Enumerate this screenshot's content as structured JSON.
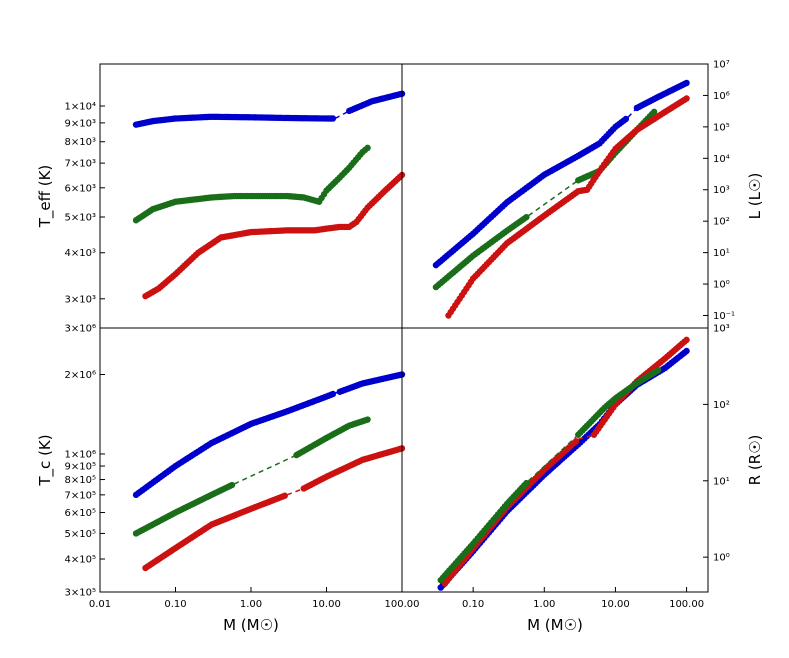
{
  "chart_data": [
    {
      "panel": "top-left",
      "type": "scatter",
      "title": "",
      "xlabel": "",
      "ylabel": "T_eff (K)",
      "xscale": "log",
      "yscale": "log",
      "xlim": [
        0.01,
        100
      ],
      "ylim": [
        2500,
        13000
      ],
      "ytick_labels": [
        "3×10³",
        "4×10³",
        "5×10³",
        "6×10³",
        "7×10³",
        "8×10³",
        "9×10³",
        "1×10⁴"
      ],
      "ytick_values": [
        3000,
        4000,
        5000,
        6000,
        7000,
        8000,
        9000,
        10000
      ],
      "series": [
        {
          "name": "blue",
          "color": "#0000cc",
          "points": [
            [
              0.03,
              8900
            ],
            [
              0.05,
              9100
            ],
            [
              0.1,
              9250
            ],
            [
              0.3,
              9350
            ],
            [
              1,
              9320
            ],
            [
              3,
              9280
            ],
            [
              10,
              9250
            ],
            [
              13,
              9250
            ],
            [
              20,
              9700
            ],
            [
              40,
              10300
            ],
            [
              100,
              10800
            ]
          ],
          "gap": [
            [
              13,
              20
            ]
          ]
        },
        {
          "name": "green",
          "color": "#1a6e1a",
          "points": [
            [
              0.03,
              4900
            ],
            [
              0.05,
              5250
            ],
            [
              0.1,
              5500
            ],
            [
              0.3,
              5650
            ],
            [
              0.6,
              5700
            ],
            [
              3,
              5700
            ],
            [
              5,
              5650
            ],
            [
              8,
              5500
            ],
            [
              10,
              5900
            ],
            [
              15,
              6400
            ],
            [
              20,
              6800
            ],
            [
              30,
              7500
            ],
            [
              35,
              7700
            ]
          ],
          "gap": [
            [
              0.6,
              4
            ]
          ]
        },
        {
          "name": "red",
          "color": "#cc1111",
          "points": [
            [
              0.04,
              3050
            ],
            [
              0.06,
              3200
            ],
            [
              0.1,
              3500
            ],
            [
              0.2,
              4000
            ],
            [
              0.4,
              4400
            ],
            [
              1,
              4550
            ],
            [
              3,
              4600
            ],
            [
              7,
              4600
            ],
            [
              10,
              4650
            ],
            [
              15,
              4700
            ],
            [
              20,
              4700
            ],
            [
              25,
              4850
            ],
            [
              35,
              5300
            ],
            [
              60,
              5900
            ],
            [
              100,
              6500
            ]
          ],
          "gap": []
        }
      ]
    },
    {
      "panel": "top-right",
      "type": "scatter",
      "title": "",
      "xlabel": "",
      "ylabel": "L (L☉)",
      "xscale": "log",
      "yscale": "log",
      "xlim": [
        0.01,
        200
      ],
      "ylim": [
        0.04,
        10000000
      ],
      "ytick_labels": [
        "10⁻¹",
        "10⁰",
        "10¹",
        "10²",
        "10³",
        "10⁴",
        "10⁵",
        "10⁶",
        "10⁷"
      ],
      "ytick_values": [
        0.1,
        1,
        10,
        100,
        1000,
        10000,
        100000,
        1000000,
        10000000
      ],
      "series": [
        {
          "name": "blue",
          "color": "#0000cc",
          "points": [
            [
              0.03,
              4
            ],
            [
              0.1,
              40
            ],
            [
              0.3,
              400
            ],
            [
              1,
              3000
            ],
            [
              3,
              12000
            ],
            [
              6,
              30000
            ],
            [
              10,
              100000
            ],
            [
              15,
              200000
            ],
            [
              20,
              400000
            ],
            [
              40,
              900000
            ],
            [
              100,
              2500000
            ]
          ],
          "gap": [
            [
              15,
              20
            ]
          ]
        },
        {
          "name": "green",
          "color": "#1a6e1a",
          "points": [
            [
              0.03,
              0.8
            ],
            [
              0.1,
              8
            ],
            [
              0.3,
              50
            ],
            [
              0.6,
              150
            ],
            [
              3,
              2000
            ],
            [
              6,
              4000
            ],
            [
              10,
              15000
            ],
            [
              20,
              80000
            ],
            [
              35,
              300000
            ]
          ],
          "gap": [
            [
              0.6,
              3
            ]
          ]
        },
        {
          "name": "red",
          "color": "#cc1111",
          "points": [
            [
              0.045,
              0.1
            ],
            [
              0.1,
              1.5
            ],
            [
              0.3,
              20
            ],
            [
              1,
              150
            ],
            [
              3,
              900
            ],
            [
              4,
              1000
            ],
            [
              6,
              4000
            ],
            [
              10,
              20000
            ],
            [
              20,
              80000
            ],
            [
              50,
              300000
            ],
            [
              100,
              800000
            ]
          ],
          "gap": [
            [
              4,
              5
            ]
          ]
        }
      ]
    },
    {
      "panel": "bottom-left",
      "type": "scatter",
      "title": "",
      "xlabel": "M (M☉)",
      "ylabel": "T_c (K)",
      "xscale": "log",
      "yscale": "log",
      "xlim": [
        0.01,
        100
      ],
      "ylim": [
        300000,
        3000000
      ],
      "xtick_labels": [
        "0.01",
        "0.10",
        "1.00",
        "10.00",
        "100.00"
      ],
      "xtick_values": [
        0.01,
        0.1,
        1,
        10,
        100
      ],
      "ytick_labels": [
        "3×10⁵",
        "4×10⁵",
        "5×10⁵",
        "6×10⁵",
        "7×10⁵",
        "8×10⁵",
        "9×10⁵",
        "1×10⁶",
        "2×10⁶",
        "3×10⁶"
      ],
      "ytick_values": [
        300000,
        400000,
        500000,
        600000,
        700000,
        800000,
        900000,
        1000000,
        2000000,
        3000000
      ],
      "series": [
        {
          "name": "blue",
          "color": "#0000cc",
          "points": [
            [
              0.03,
              700000
            ],
            [
              0.1,
              900000
            ],
            [
              0.3,
              1100000
            ],
            [
              1,
              1300000
            ],
            [
              3,
              1450000
            ],
            [
              10,
              1650000
            ],
            [
              13,
              1700000
            ],
            [
              15,
              1720000
            ],
            [
              30,
              1850000
            ],
            [
              100,
              2000000
            ]
          ],
          "gap": [
            [
              13,
              15
            ]
          ]
        },
        {
          "name": "green",
          "color": "#1a6e1a",
          "points": [
            [
              0.03,
              500000
            ],
            [
              0.1,
              600000
            ],
            [
              0.3,
              700000
            ],
            [
              0.6,
              770000
            ],
            [
              4,
              990000
            ],
            [
              10,
              1150000
            ],
            [
              20,
              1280000
            ],
            [
              35,
              1350000
            ]
          ],
          "gap": [
            [
              0.6,
              4
            ]
          ]
        },
        {
          "name": "red",
          "color": "#cc1111",
          "points": [
            [
              0.04,
              370000
            ],
            [
              0.1,
              440000
            ],
            [
              0.3,
              540000
            ],
            [
              1,
              620000
            ],
            [
              3,
              700000
            ],
            [
              5,
              740000
            ],
            [
              10,
              820000
            ],
            [
              30,
              950000
            ],
            [
              100,
              1050000
            ]
          ],
          "gap": [
            [
              3,
              5
            ]
          ]
        }
      ]
    },
    {
      "panel": "bottom-right",
      "type": "scatter",
      "title": "",
      "xlabel": "M (M☉)",
      "ylabel": "R (R☉)",
      "xscale": "log",
      "yscale": "log",
      "xlim": [
        0.01,
        200
      ],
      "ylim": [
        0.35,
        1000
      ],
      "xtick_labels": [
        "0.10",
        "1.00",
        "10.00",
        "100.00"
      ],
      "xtick_values": [
        0.1,
        1,
        10,
        100
      ],
      "ytick_labels": [
        "10⁰",
        "10¹",
        "10²",
        "10³"
      ],
      "ytick_values": [
        1,
        10,
        100,
        1000
      ],
      "series": [
        {
          "name": "blue",
          "color": "#0000cc",
          "points": [
            [
              0.035,
              0.4
            ],
            [
              0.1,
              1.2
            ],
            [
              0.3,
              4
            ],
            [
              1,
              12
            ],
            [
              3,
              30
            ],
            [
              6,
              55
            ],
            [
              10,
              100
            ],
            [
              20,
              180
            ],
            [
              50,
              300
            ],
            [
              100,
              500
            ]
          ],
          "gap": []
        },
        {
          "name": "red",
          "color": "#cc1111",
          "points": [
            [
              0.04,
              0.45
            ],
            [
              0.1,
              1.3
            ],
            [
              0.3,
              4.5
            ],
            [
              1,
              14
            ],
            [
              3,
              35
            ],
            [
              5,
              40
            ],
            [
              10,
              100
            ],
            [
              20,
              200
            ],
            [
              50,
              400
            ],
            [
              100,
              700
            ]
          ],
          "gap": [
            [
              3,
              5
            ]
          ]
        },
        {
          "name": "green",
          "color": "#1a6e1a",
          "points": [
            [
              0.035,
              0.5
            ],
            [
              0.1,
              1.5
            ],
            [
              0.3,
              5
            ],
            [
              0.6,
              10
            ],
            [
              3,
              40
            ],
            [
              7,
              90
            ],
            [
              10,
              120
            ],
            [
              20,
              190
            ],
            [
              40,
              280
            ]
          ],
          "gap": [
            [
              0.6,
              3
            ]
          ]
        }
      ]
    }
  ]
}
